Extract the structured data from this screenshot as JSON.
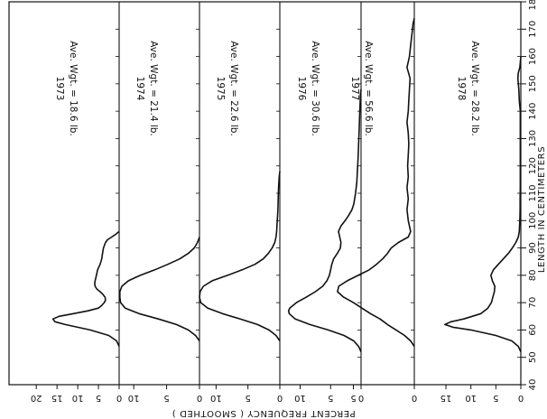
{
  "chart_data": {
    "type": "line",
    "orientation": "rotated 90 degrees; length axis runs vertically on the right, frequency axis runs along the bottom",
    "xlabel": "LENGTH IN CENTIMETERS",
    "ylabel": "PERCENT FREQUENCY ( SMOOTHED )",
    "xlim": [
      40,
      180
    ],
    "x_ticks": [
      "40",
      "50",
      "60",
      "70",
      "80",
      "90",
      "100",
      "110",
      "120",
      "130",
      "140",
      "150",
      "160",
      "170",
      "180"
    ],
    "first_panel_freq_ticks": [
      "20",
      "15",
      "10",
      "5",
      "0"
    ],
    "panels": [
      {
        "year": "1973",
        "label": "Ave. Wgt. = 18.6 lb.",
        "freq_ticks": [
          "20",
          "15",
          "10",
          "5",
          "0"
        ],
        "freq_max": 20,
        "x": [
          54,
          56,
          58,
          60,
          62,
          63,
          64,
          65,
          66,
          67,
          68,
          69,
          70,
          71,
          72,
          73,
          74,
          75,
          76,
          77,
          78,
          80,
          82,
          84,
          86,
          88,
          90,
          92,
          93,
          94,
          95,
          96
        ],
        "values": [
          0,
          0.6,
          2.5,
          7,
          13,
          15.5,
          16,
          14.5,
          11,
          7.5,
          5,
          4.2,
          3.6,
          3.3,
          3.4,
          3.9,
          4.6,
          5.4,
          5.8,
          5.9,
          5.8,
          5.5,
          5.2,
          4.6,
          4.2,
          4,
          3.8,
          3.3,
          2.8,
          1.8,
          0.8,
          0
        ]
      },
      {
        "year": "1974",
        "label": "Ave. Wgt. = 21.4 lb.",
        "freq_ticks": [
          "10",
          "5",
          "0"
        ],
        "freq_max": 12.6,
        "x": [
          56,
          58,
          60,
          62,
          64,
          66,
          68,
          70,
          72,
          74,
          76,
          78,
          80,
          82,
          84,
          86,
          88,
          90,
          92,
          94
        ],
        "values": [
          0,
          0.6,
          1.7,
          3.5,
          6.2,
          9.2,
          11.3,
          12,
          12.1,
          12.1,
          11.8,
          10.8,
          9,
          6.8,
          4.8,
          3,
          1.7,
          0.8,
          0.3,
          0
        ]
      },
      {
        "year": "1975",
        "label": "Ave. Wgt. = 22.6 lb.",
        "freq_ticks": [
          "10",
          "5",
          "0"
        ],
        "freq_max": 13,
        "x": [
          56,
          58,
          60,
          62,
          64,
          66,
          68,
          70,
          72,
          74,
          76,
          78,
          80,
          82,
          84,
          86,
          88,
          90,
          92,
          94,
          96,
          98,
          100,
          104,
          108,
          112,
          116,
          118
        ],
        "values": [
          0,
          0.6,
          1.7,
          3.5,
          6.2,
          9,
          11.3,
          12.4,
          12.6,
          12.5,
          12,
          10.6,
          8.2,
          5.9,
          3.9,
          2.6,
          1.8,
          1.2,
          0.8,
          0.6,
          0.5,
          0.45,
          0.4,
          0.3,
          0.25,
          0.2,
          0.1,
          0
        ]
      },
      {
        "year": "1976",
        "label": "Ave. Wgt. = 30.6 lb.",
        "freq_ticks": [
          "10",
          "5",
          "0"
        ],
        "freq_max": 13.6,
        "x": [
          52,
          54,
          56,
          58,
          60,
          62,
          64,
          66,
          67,
          68,
          70,
          72,
          74,
          76,
          78,
          80,
          82,
          84,
          86,
          88,
          90,
          92,
          94,
          96,
          98,
          100,
          102,
          104,
          106,
          110,
          114,
          118,
          122,
          128,
          134,
          140,
          146,
          148
        ],
        "values": [
          0,
          0.4,
          1.2,
          2.8,
          5.4,
          8.4,
          10.8,
          11.8,
          11.9,
          11.7,
          10.6,
          9,
          7.5,
          6.3,
          5.6,
          5.2,
          5,
          4.8,
          4.5,
          3.9,
          3.4,
          3.3,
          3.5,
          3.7,
          3.3,
          2.6,
          2,
          1.5,
          1.2,
          0.9,
          0.7,
          0.6,
          0.5,
          0.4,
          0.3,
          0.2,
          0.1,
          0
        ]
      },
      {
        "year": "1977",
        "label": "Ave. Wgt. = 56.6 lb.",
        "freq_ticks": [
          "5",
          "0"
        ],
        "freq_max": 6.8,
        "x": [
          54,
          56,
          58,
          60,
          62,
          64,
          66,
          68,
          70,
          72,
          74,
          76,
          78,
          80,
          82,
          84,
          86,
          88,
          90,
          92,
          94,
          96,
          98,
          100,
          104,
          108,
          112,
          116,
          120,
          124,
          128,
          132,
          136,
          140,
          144,
          148,
          152,
          156,
          160,
          164,
          168,
          170,
          172,
          174
        ],
        "values": [
          0,
          0.3,
          0.8,
          1.5,
          2.2,
          2.8,
          3.6,
          4.3,
          5,
          5.8,
          6.3,
          6.2,
          5.5,
          4.6,
          3.7,
          3.1,
          2.6,
          2.2,
          1.9,
          1.3,
          0.5,
          0.3,
          0.4,
          0.5,
          0.6,
          0.5,
          0.6,
          0.5,
          0.55,
          0.5,
          0.45,
          0.5,
          0.6,
          0.5,
          0.45,
          0.4,
          0.35,
          0.6,
          0.4,
          0.3,
          0.2,
          0.15,
          0.1,
          0
        ]
      },
      {
        "year": "1978",
        "label": "Ave. Wgt. = 28.2 lb.",
        "freq_ticks": [
          "15",
          "10",
          "5",
          "0"
        ],
        "freq_max": 16.6,
        "x": [
          52,
          54,
          56,
          58,
          60,
          61,
          62,
          63,
          64,
          66,
          68,
          70,
          72,
          74,
          76,
          78,
          80,
          82,
          84,
          86,
          88,
          90,
          92,
          94,
          96,
          98,
          100,
          104,
          108,
          112,
          116,
          120,
          124,
          128,
          132,
          136,
          140,
          144,
          148,
          152,
          154,
          156,
          160
        ],
        "values": [
          0,
          0.5,
          1.8,
          5,
          10,
          13.6,
          15.2,
          14,
          11.5,
          8,
          6.6,
          5.9,
          5.6,
          5.3,
          5.2,
          5.7,
          6,
          5.5,
          4.5,
          3.5,
          2.5,
          1.7,
          1,
          0.5,
          0.3,
          0.25,
          0.2,
          0.15,
          0.15,
          0.1,
          0.1,
          0.1,
          0.1,
          0.1,
          0.1,
          0.1,
          0.1,
          0.3,
          0.4,
          0.6,
          0.5,
          0.2,
          0
        ]
      }
    ]
  }
}
